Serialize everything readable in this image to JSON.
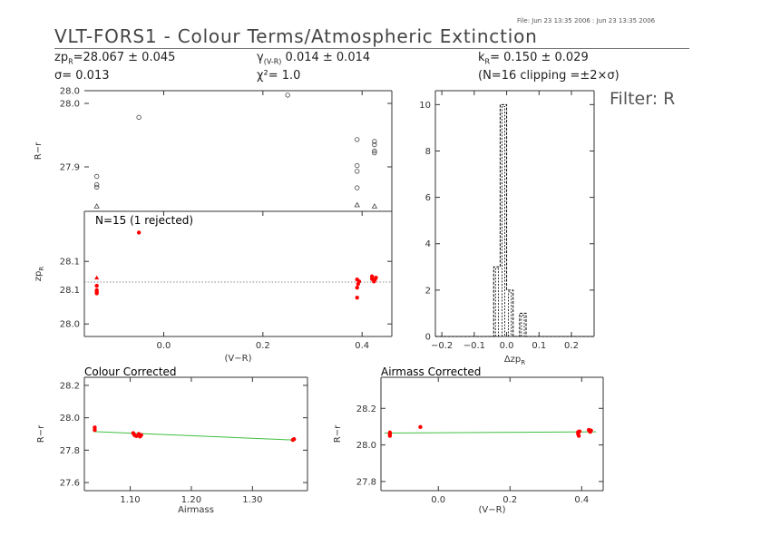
{
  "header": {
    "file_line": "File: Jun 23 13:35 2006 : Jun 23 13:35 2006",
    "title": "VLT-FORS1 - Colour Terms/Atmospheric Extinction",
    "zp_label": "zp",
    "zp_sub": "R",
    "zp_value": "=28.067 ± 0.045",
    "gamma_label": "γ",
    "gamma_sub": "(V-R)",
    "gamma_value": " 0.014 ± 0.014",
    "k_label": "k",
    "k_sub": "R",
    "k_value": "= 0.150 ± 0.029",
    "sigma_text": "σ= 0.013",
    "chi_text": "χ²=  1.0",
    "clip_text": "(N=16 clipping =±2×σ)",
    "filter_text": "Filter: R"
  },
  "chart_data": [
    {
      "id": "rr_vs_vr",
      "type": "scatter",
      "ylabel": "R−r",
      "xlim": [
        -0.16,
        0.46
      ],
      "ylim": [
        27.83,
        28.02
      ],
      "yticks": [
        27.9,
        28.0
      ],
      "ytick_labels": [
        "27.9",
        "28.0"
      ],
      "extra_ytick_labels": [
        {
          "value": 28.02,
          "label": "28.0"
        }
      ],
      "series": [
        {
          "marker": "circle",
          "points": [
            [
              -0.135,
              27.885
            ],
            [
              -0.135,
              27.872
            ],
            [
              -0.135,
              27.868
            ],
            [
              -0.05,
              27.978
            ],
            [
              0.25,
              28.013
            ],
            [
              0.39,
              27.943
            ],
            [
              0.39,
              27.902
            ],
            [
              0.39,
              27.893
            ],
            [
              0.39,
              27.867
            ],
            [
              0.425,
              27.94
            ],
            [
              0.425,
              27.935
            ],
            [
              0.425,
              27.925
            ],
            [
              0.425,
              27.922
            ]
          ]
        },
        {
          "marker": "triangle",
          "points": [
            [
              -0.135,
              27.838
            ],
            [
              0.39,
              27.84
            ],
            [
              0.425,
              27.838
            ]
          ]
        }
      ]
    },
    {
      "id": "zp_vs_vr",
      "type": "scatter",
      "annotation": "N=15 (1 rejected)",
      "ylabel": "zp_R",
      "xlabel": "(V−R)",
      "xlim": [
        -0.16,
        0.46
      ],
      "ylim": [
        27.98,
        28.18
      ],
      "yticks": [
        28.0,
        28.1
      ],
      "ytick_labels": [
        "28.0",
        "28.1"
      ],
      "extra_ytick_labels": [
        {
          "value": 28.055,
          "label": "28.1"
        }
      ],
      "xticks": [
        0.0,
        0.2,
        0.4
      ],
      "xtick_labels": [
        "0.0",
        "0.2",
        "0.4"
      ],
      "fit_line": {
        "value": 28.067,
        "style": "dotted"
      },
      "series": [
        {
          "marker": "filled",
          "color": "#ff0000",
          "points": [
            [
              -0.135,
              28.061
            ],
            [
              -0.135,
              28.054
            ],
            [
              -0.135,
              28.051
            ],
            [
              -0.135,
              28.049
            ],
            [
              -0.05,
              28.146
            ],
            [
              0.39,
              28.071
            ],
            [
              0.39,
              28.058
            ],
            [
              0.39,
              28.042
            ],
            [
              0.392,
              28.064
            ],
            [
              0.394,
              28.068
            ],
            [
              0.42,
              28.072
            ],
            [
              0.42,
              28.076
            ],
            [
              0.424,
              28.068
            ],
            [
              0.426,
              28.071
            ],
            [
              0.428,
              28.074
            ]
          ]
        },
        {
          "marker": "triangle-filled",
          "color": "#ff0000",
          "points": [
            [
              -0.135,
              28.074
            ]
          ]
        }
      ]
    },
    {
      "id": "hist_dzp",
      "type": "histogram",
      "xlabel": "Δzp_R",
      "xlim": [
        -0.22,
        0.27
      ],
      "ylim": [
        0,
        10.6
      ],
      "xticks": [
        -0.2,
        -0.1,
        0.0,
        0.1,
        0.2
      ],
      "xtick_labels": [
        "−0.2",
        "−0.1",
        "0.0",
        "0.1",
        "0.2"
      ],
      "yticks": [
        0,
        2,
        4,
        6,
        8,
        10
      ],
      "ytick_labels": [
        "0",
        "2",
        "4",
        "6",
        "8",
        "10"
      ],
      "bin_edges": [
        -0.04,
        -0.02,
        0.0,
        0.02,
        0.04,
        0.06,
        0.08
      ],
      "counts": [
        3,
        10,
        2,
        0,
        1,
        0
      ]
    },
    {
      "id": "colour_corrected",
      "type": "scatter",
      "title": "Colour Corrected",
      "xlabel": "Airmass",
      "ylabel": "R−r",
      "xlim": [
        1.025,
        1.39
      ],
      "ylim": [
        27.55,
        28.25
      ],
      "xticks": [
        1.1,
        1.2,
        1.3
      ],
      "xtick_labels": [
        "1.10",
        "1.20",
        "1.30"
      ],
      "yticks": [
        27.6,
        27.8,
        28.0,
        28.2
      ],
      "ytick_labels": [
        "27.6",
        "27.8",
        "28.0",
        "28.2"
      ],
      "fit_line": {
        "points": [
          [
            1.04,
            27.915
          ],
          [
            1.37,
            27.862
          ]
        ],
        "color": "#3fbf3f"
      },
      "series": [
        {
          "marker": "filled",
          "color": "#ff0000",
          "points": [
            [
              1.042,
              27.94
            ],
            [
              1.042,
              27.925
            ],
            [
              1.105,
              27.905
            ],
            [
              1.107,
              27.893
            ],
            [
              1.11,
              27.887
            ],
            [
              1.114,
              27.9
            ],
            [
              1.116,
              27.884
            ],
            [
              1.118,
              27.893
            ],
            [
              1.366,
              27.863
            ],
            [
              1.368,
              27.868
            ]
          ]
        }
      ]
    },
    {
      "id": "airmass_corrected",
      "type": "scatter",
      "title": "Airmass Corrected",
      "xlabel": "(V−R)",
      "ylabel": "R−r",
      "xlim": [
        -0.16,
        0.46
      ],
      "ylim": [
        27.75,
        28.37
      ],
      "xticks": [
        0.0,
        0.2,
        0.4
      ],
      "xtick_labels": [
        "0.0",
        "0.2",
        "0.4"
      ],
      "yticks": [
        27.8,
        28.0,
        28.2
      ],
      "ytick_labels": [
        "27.8",
        "28.0",
        "28.2"
      ],
      "fit_line": {
        "points": [
          [
            -0.15,
            28.065
          ],
          [
            0.44,
            28.072
          ]
        ],
        "color": "#3fbf3f"
      },
      "series": [
        {
          "marker": "filled",
          "color": "#ff0000",
          "points": [
            [
              -0.135,
              28.068
            ],
            [
              -0.135,
              28.057
            ],
            [
              -0.135,
              28.05
            ],
            [
              -0.05,
              28.098
            ],
            [
              0.39,
              28.07
            ],
            [
              0.39,
              28.06
            ],
            [
              0.392,
              28.05
            ],
            [
              0.394,
              28.074
            ],
            [
              0.42,
              28.082
            ],
            [
              0.422,
              28.076
            ],
            [
              0.424,
              28.072
            ],
            [
              0.426,
              28.079
            ]
          ]
        }
      ]
    }
  ]
}
